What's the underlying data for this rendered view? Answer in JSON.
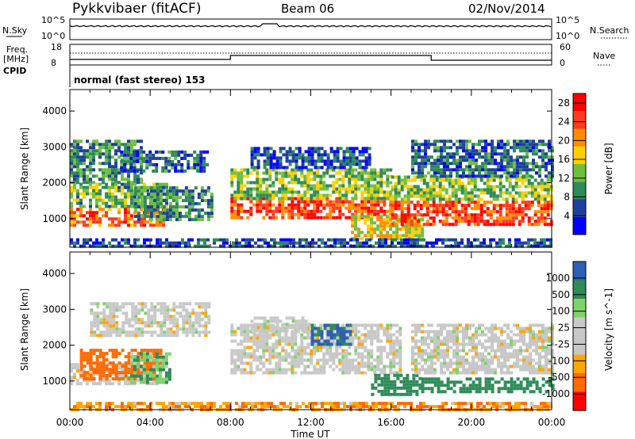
{
  "header": {
    "title": "Pykkvibaer (fitACF)",
    "beam": "Beam 06",
    "date": "02/Nov/2014"
  },
  "strip_panels": {
    "nsky": {
      "label": "N.Sky",
      "tick_top": "10^5",
      "tick_bottom": "10^0"
    },
    "nsearch": {
      "label": "N.Search",
      "tick_top": "10^5",
      "tick_bottom": "10^0"
    },
    "freq": {
      "label_line1": "Freq.",
      "label_line2": "[MHz]",
      "tick_top": "18",
      "tick_bottom": "8"
    },
    "nave": {
      "label": "Nave",
      "tick_top": "60",
      "tick_bottom": "0"
    },
    "cpid": {
      "label": "CPID",
      "value": "normal (fast stereo) 153"
    }
  },
  "colors": {
    "power": [
      "#0000ff",
      "#1f3f9f",
      "#2e8b57",
      "#6fbf3f",
      "#ffd000",
      "#ff8c00",
      "#ff3b1f",
      "#ff0000"
    ],
    "velocity": [
      "#ff0000",
      "#ff6a00",
      "#ffa500",
      "#c8c8c8",
      "#c8c8c8",
      "#7fd36b",
      "#2e8b57",
      "#2f5fb3"
    ],
    "ground_scatter": "#c8c8c8",
    "axis": "#000000"
  },
  "chart_data": [
    {
      "type": "heatmap",
      "name": "power",
      "ylabel": "Slant Range [km]",
      "yticks": [
        1000,
        2000,
        3000,
        4000
      ],
      "ylim": [
        200,
        4600
      ],
      "xlim": [
        0,
        24
      ],
      "colorbar": {
        "label": "Power [dB]",
        "ticks": [
          4,
          8,
          12,
          16,
          20,
          24,
          28
        ],
        "range": [
          0,
          30
        ]
      },
      "regions": [
        {
          "t0": 0.0,
          "t1": 3.5,
          "r0": 2000,
          "r1": 3200,
          "value": 10
        },
        {
          "t0": 2.5,
          "t1": 6.8,
          "r0": 2300,
          "r1": 2900,
          "value": 7
        },
        {
          "t0": 0.0,
          "t1": 4.8,
          "r0": 1300,
          "r1": 2000,
          "value": 13
        },
        {
          "t0": 0.0,
          "t1": 4.6,
          "r0": 800,
          "r1": 1300,
          "value": 24
        },
        {
          "t0": 3.2,
          "t1": 7.0,
          "r0": 1000,
          "r1": 1900,
          "value": 10
        },
        {
          "t0": 8.0,
          "t1": 16.0,
          "r0": 1000,
          "r1": 1600,
          "value": 26
        },
        {
          "t0": 8.0,
          "t1": 16.0,
          "r0": 1600,
          "r1": 2400,
          "value": 14
        },
        {
          "t0": 9.0,
          "t1": 15.0,
          "r0": 2400,
          "r1": 3000,
          "value": 6
        },
        {
          "t0": 14.0,
          "t1": 17.5,
          "r0": 400,
          "r1": 1100,
          "value": 18
        },
        {
          "t0": 16.0,
          "t1": 24.0,
          "r0": 800,
          "r1": 1500,
          "value": 26
        },
        {
          "t0": 16.0,
          "t1": 24.0,
          "r0": 1500,
          "r1": 2200,
          "value": 14
        },
        {
          "t0": 17.0,
          "t1": 24.0,
          "r0": 2200,
          "r1": 3200,
          "value": 8
        },
        {
          "t0": 0.0,
          "t1": 24.0,
          "r0": 200,
          "r1": 450,
          "value": 6
        }
      ]
    },
    {
      "type": "heatmap",
      "name": "velocity",
      "ylabel": "Slant Range [km]",
      "xlabel": "Time UT",
      "yticks": [
        1000,
        2000,
        3000,
        4000
      ],
      "ylim": [
        200,
        4600
      ],
      "xlim": [
        0,
        24
      ],
      "xticks": [
        0,
        4,
        8,
        12,
        16,
        20,
        24
      ],
      "xtick_labels": [
        "00:00",
        "04:00",
        "08:00",
        "12:00",
        "16:00",
        "20:00",
        "00:00"
      ],
      "colorbar": {
        "label": "Velocity [m s^-1]",
        "ticks": [
          1000,
          500,
          100,
          25,
          -25,
          -100,
          -500,
          -1000
        ]
      },
      "regions": [
        {
          "t0": 1.0,
          "t1": 7.0,
          "r0": 2300,
          "r1": 3200,
          "value": 0
        },
        {
          "t0": 0.0,
          "t1": 4.5,
          "r0": 900,
          "r1": 1500,
          "value": 0
        },
        {
          "t0": 0.5,
          "t1": 4.5,
          "r0": 1100,
          "r1": 1900,
          "value": -300
        },
        {
          "t0": 3.0,
          "t1": 5.0,
          "r0": 1000,
          "r1": 1800,
          "value": 80
        },
        {
          "t0": 8.0,
          "t1": 16.5,
          "r0": 1200,
          "r1": 2600,
          "value": 0
        },
        {
          "t0": 9.0,
          "t1": 12.0,
          "r0": 2400,
          "r1": 2800,
          "value": 0
        },
        {
          "t0": 15.0,
          "t1": 17.5,
          "r0": 600,
          "r1": 1200,
          "value": 300
        },
        {
          "t0": 17.5,
          "t1": 24.0,
          "r0": 700,
          "r1": 1100,
          "value": 300
        },
        {
          "t0": 17.0,
          "t1": 24.0,
          "r0": 1200,
          "r1": 2600,
          "value": 0
        },
        {
          "t0": 12.0,
          "t1": 14.0,
          "r0": 2000,
          "r1": 2600,
          "value": 600
        },
        {
          "t0": 0.0,
          "t1": 24.0,
          "r0": 200,
          "r1": 420,
          "value": -80
        }
      ]
    }
  ]
}
